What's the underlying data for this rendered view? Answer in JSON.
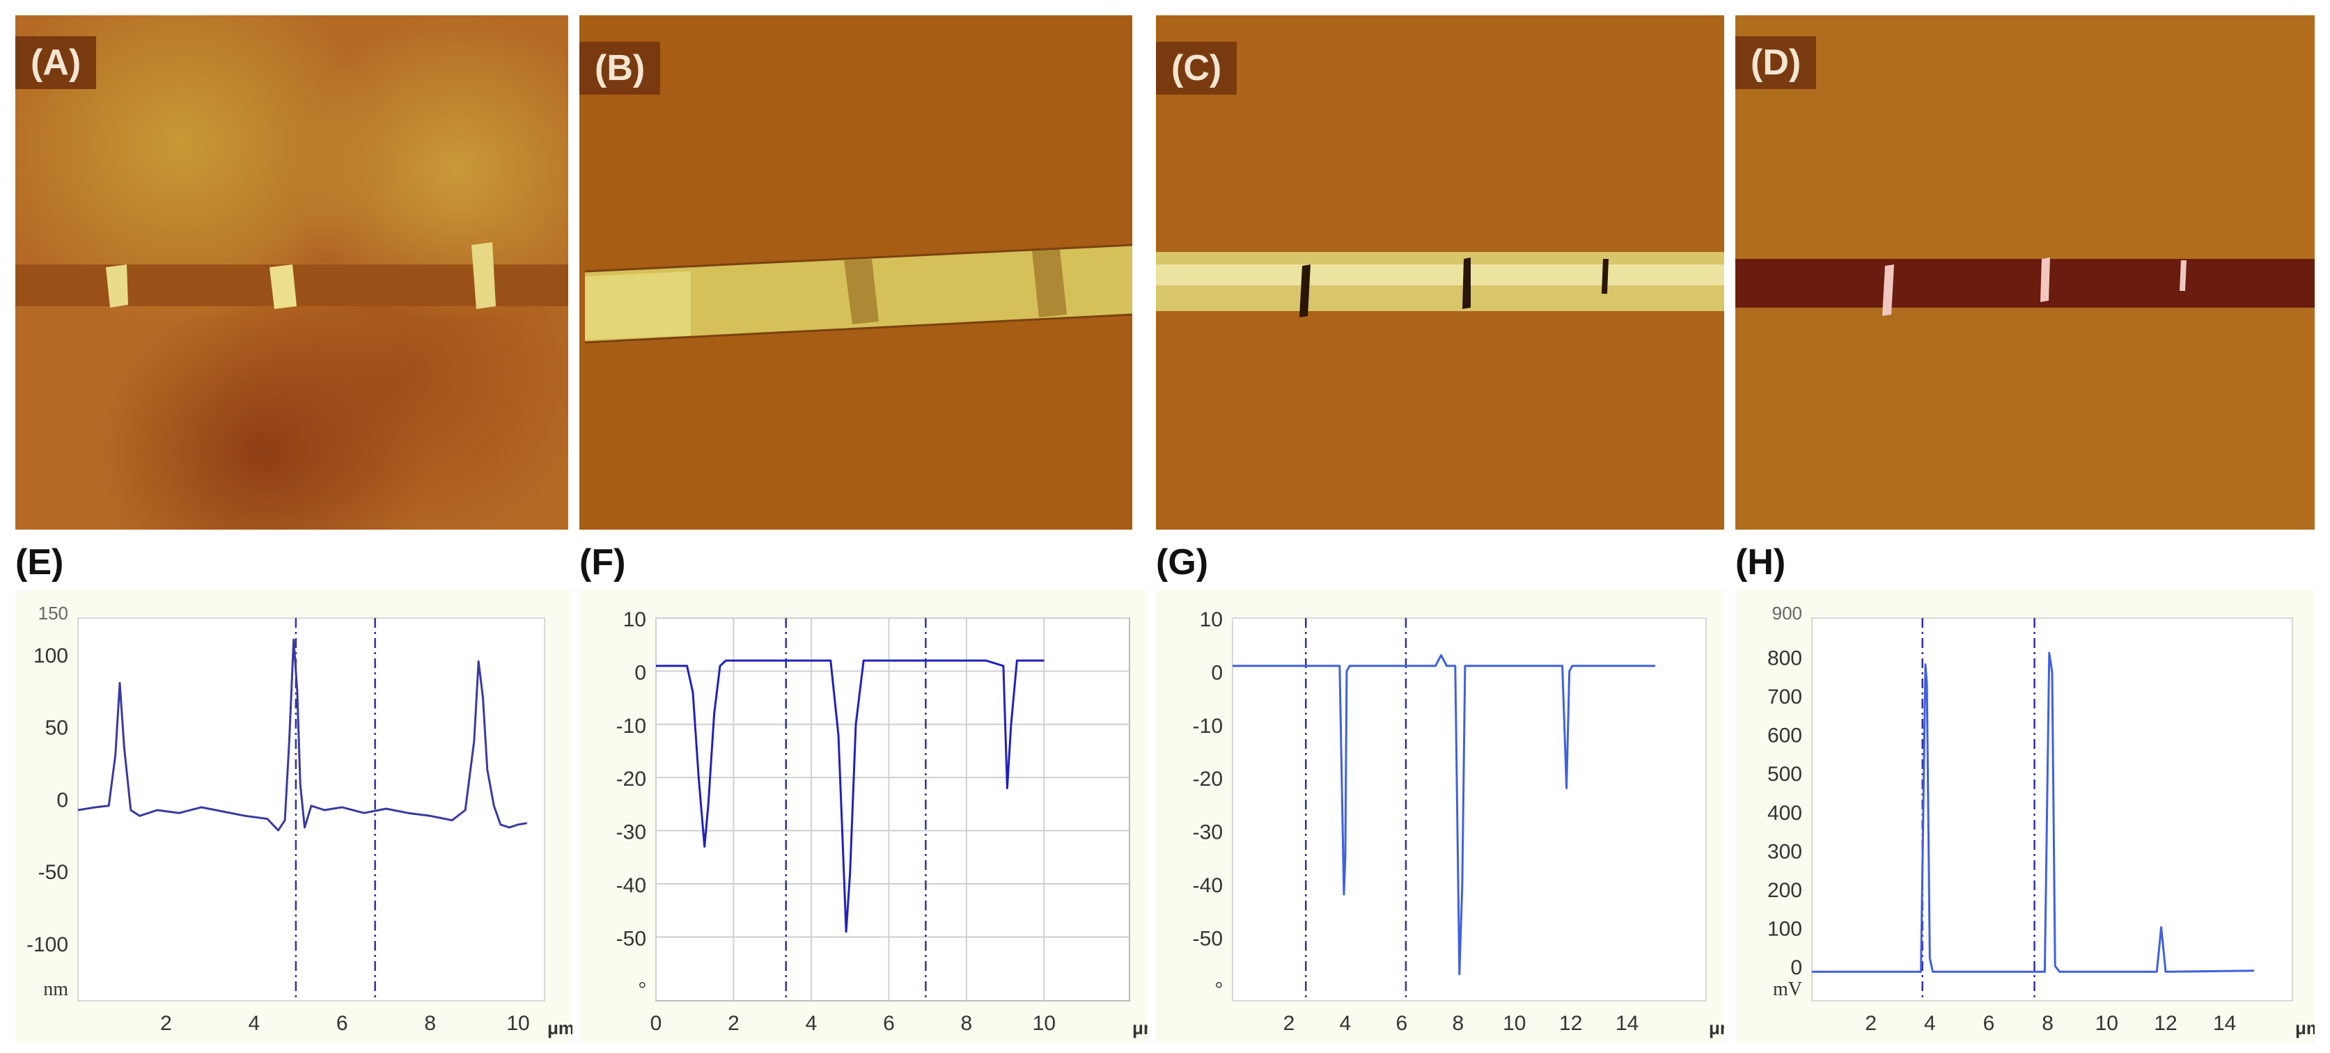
{
  "panels_afm": [
    {
      "label": "(A)"
    },
    {
      "label": "(B)"
    },
    {
      "label": "(C)"
    },
    {
      "label": "(D)"
    }
  ],
  "chart_data": [
    {
      "label": "(E)",
      "type": "line",
      "xlim": [
        0,
        10.6
      ],
      "ylim": [
        -140,
        125
      ],
      "xticks": [
        2,
        4,
        6,
        8,
        10
      ],
      "yticks": [
        100,
        50,
        0,
        -50,
        -100
      ],
      "ytick_labels": [
        "100",
        "50",
        "0",
        "-50",
        "-100"
      ],
      "top_tick_label": "150",
      "y_unit": "nm",
      "x_unit": "μm",
      "cursors": [
        4.95,
        6.75
      ],
      "grid": false,
      "color": "#3a3aa0",
      "x": [
        0.0,
        0.4,
        0.7,
        0.85,
        0.95,
        1.05,
        1.2,
        1.4,
        1.8,
        2.3,
        2.8,
        3.3,
        3.8,
        4.3,
        4.55,
        4.7,
        4.8,
        4.9,
        4.98,
        5.05,
        5.15,
        5.3,
        5.6,
        6.0,
        6.5,
        7.0,
        7.5,
        8.0,
        8.5,
        8.8,
        9.0,
        9.1,
        9.2,
        9.3,
        9.45,
        9.6,
        9.8,
        10.0,
        10.2
      ],
      "y": [
        -8,
        -6,
        -5,
        30,
        80,
        35,
        -8,
        -12,
        -8,
        -10,
        -6,
        -9,
        -12,
        -14,
        -22,
        -15,
        40,
        110,
        75,
        10,
        -20,
        -5,
        -8,
        -6,
        -10,
        -7,
        -10,
        -12,
        -15,
        -8,
        40,
        95,
        70,
        20,
        -5,
        -18,
        -20,
        -18,
        -17
      ]
    },
    {
      "label": "(F)",
      "type": "line",
      "xlim": [
        0,
        12.2
      ],
      "ylim": [
        -62,
        10
      ],
      "xticks": [
        0,
        2,
        4,
        6,
        8,
        10
      ],
      "yticks": [
        10,
        0,
        -10,
        -20,
        -30,
        -40,
        -50
      ],
      "ytick_labels": [
        "10",
        "0",
        "-10",
        "-20",
        "-30",
        "-40",
        "-50"
      ],
      "top_tick_label": "",
      "y_unit": "°",
      "x_unit": "μm",
      "cursors": [
        3.35,
        6.95
      ],
      "grid": true,
      "color": "#2020c0",
      "x": [
        0.0,
        0.8,
        0.95,
        1.1,
        1.25,
        1.35,
        1.5,
        1.65,
        1.8,
        3.0,
        4.0,
        4.5,
        4.7,
        4.8,
        4.9,
        5.0,
        5.15,
        5.35,
        5.6,
        7.0,
        8.5,
        8.95,
        9.05,
        9.15,
        9.3,
        9.6,
        10.0
      ],
      "y": [
        1,
        1,
        -4,
        -20,
        -33,
        -25,
        -8,
        1,
        2,
        2,
        2,
        2,
        -12,
        -30,
        -49,
        -38,
        -10,
        2,
        2,
        2,
        2,
        1,
        -22,
        -10,
        2,
        2,
        2
      ]
    },
    {
      "label": "(G)",
      "type": "line",
      "xlim": [
        0,
        16.8
      ],
      "ylim": [
        -62,
        10
      ],
      "xticks": [
        2,
        4,
        6,
        8,
        10,
        12,
        14
      ],
      "yticks": [
        10,
        0,
        -10,
        -20,
        -30,
        -40,
        -50
      ],
      "ytick_labels": [
        "10",
        "0",
        "-10",
        "-20",
        "-30",
        "-40",
        "-50"
      ],
      "top_tick_label": "",
      "y_unit": "°",
      "x_unit": "μm",
      "cursors": [
        2.6,
        6.15
      ],
      "grid": false,
      "color": "#4060e0",
      "x": [
        0.0,
        3.8,
        3.95,
        4.0,
        4.05,
        4.15,
        7.2,
        7.4,
        7.6,
        7.9,
        8.05,
        8.15,
        8.25,
        8.4,
        11.7,
        11.85,
        11.95,
        12.05,
        15.0
      ],
      "y": [
        1,
        1,
        -42,
        -35,
        0,
        1,
        1,
        3,
        1,
        1,
        -57,
        -40,
        1,
        1,
        1,
        -22,
        0,
        1,
        1
      ]
    },
    {
      "label": "(H)",
      "type": "line",
      "xlim": [
        0,
        16.3
      ],
      "ylim": [
        -90,
        900
      ],
      "xticks": [
        2,
        4,
        6,
        8,
        10,
        12,
        14
      ],
      "yticks": [
        800,
        700,
        600,
        500,
        400,
        300,
        200,
        100,
        0
      ],
      "ytick_labels": [
        "800",
        "700",
        "600",
        "500",
        "400",
        "300",
        "200",
        "100",
        "0"
      ],
      "top_tick_label": "900",
      "y_unit": "mV",
      "x_unit": "μm",
      "cursors": [
        3.75,
        7.55
      ],
      "grid": false,
      "color": "#4060e0",
      "x": [
        0.0,
        3.7,
        3.85,
        3.9,
        4.0,
        4.1,
        4.3,
        7.9,
        8.05,
        8.15,
        8.25,
        8.4,
        11.7,
        11.85,
        12.0,
        15.0
      ],
      "y": [
        -15,
        -15,
        780,
        730,
        20,
        -15,
        -15,
        -15,
        810,
        760,
        0,
        -15,
        -15,
        100,
        -15,
        -12
      ]
    }
  ]
}
